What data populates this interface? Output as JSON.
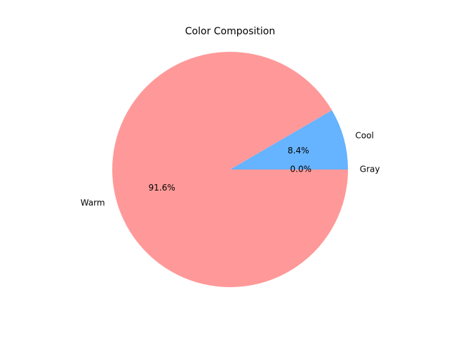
{
  "chart_data": {
    "type": "pie",
    "title": "Color Composition",
    "slices": [
      {
        "label": "Gray",
        "value": 0.0,
        "pct_label": "0.0%",
        "color": "#99ff99"
      },
      {
        "label": "Cool",
        "value": 8.4,
        "pct_label": "8.4%",
        "color": "#66b3ff"
      },
      {
        "label": "Warm",
        "value": 91.6,
        "pct_label": "91.6%",
        "color": "#ff9999"
      }
    ],
    "start_angle_deg": 0,
    "direction": "counterclockwise",
    "legend": "none"
  }
}
